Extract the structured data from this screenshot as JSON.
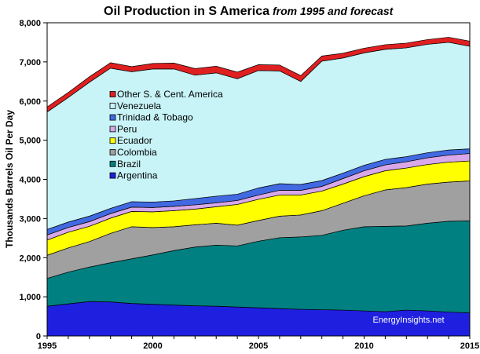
{
  "chart_data": {
    "type": "area",
    "stacked": true,
    "title": "Oil Production in S America",
    "subtitle": "from 1995 and forecast",
    "ylabel": "Thousands Barrels Oil Per Day",
    "xlabel": "",
    "xlim": [
      1995,
      2015
    ],
    "ylim": [
      0,
      8000
    ],
    "x_ticks": [
      1995,
      2000,
      2005,
      2010,
      2015
    ],
    "y_ticks": [
      0,
      1000,
      2000,
      3000,
      4000,
      5000,
      6000,
      7000,
      8000
    ],
    "y_tick_labels": [
      "0",
      "1,000",
      "2,000",
      "3,000",
      "4,000",
      "5,000",
      "6,000",
      "7,000",
      "8,000"
    ],
    "grid": false,
    "legend_position": "center-left",
    "watermark": "EnergyInsights.net",
    "x": [
      1995,
      1996,
      1997,
      1998,
      1999,
      2000,
      2001,
      2002,
      2003,
      2004,
      2005,
      2006,
      2007,
      2008,
      2009,
      2010,
      2011,
      2012,
      2013,
      2014,
      2015
    ],
    "series": [
      {
        "name": "Argentina",
        "color": "#1f1fe0",
        "values": [
          760,
          820,
          880,
          870,
          830,
          810,
          790,
          770,
          760,
          740,
          720,
          700,
          680,
          670,
          660,
          640,
          620,
          660,
          640,
          610,
          590
        ]
      },
      {
        "name": "Brazil",
        "color": "#008080",
        "values": [
          710,
          810,
          880,
          1000,
          1140,
          1260,
          1390,
          1500,
          1560,
          1560,
          1700,
          1810,
          1850,
          1900,
          2040,
          2150,
          2180,
          2150,
          2240,
          2320,
          2350
        ]
      },
      {
        "name": "Colombia",
        "color": "#a0a0a0",
        "values": [
          590,
          620,
          650,
          750,
          820,
          700,
          610,
          570,
          560,
          530,
          530,
          550,
          560,
          630,
          690,
          790,
          930,
          980,
          1000,
          1000,
          1020
        ]
      },
      {
        "name": "Ecuador",
        "color": "#ffff00",
        "values": [
          390,
          400,
          390,
          390,
          390,
          400,
          410,
          400,
          420,
          530,
          540,
          540,
          510,
          500,
          490,
          490,
          490,
          500,
          500,
          510,
          510
        ]
      },
      {
        "name": "Peru",
        "color": "#d8a8e8",
        "values": [
          130,
          120,
          120,
          115,
          110,
          110,
          110,
          110,
          100,
          100,
          110,
          120,
          120,
          120,
          140,
          150,
          150,
          160,
          170,
          180,
          190
        ]
      },
      {
        "name": "Trinidad & Tobago",
        "color": "#4169e1",
        "values": [
          140,
          140,
          140,
          135,
          140,
          140,
          140,
          160,
          170,
          160,
          180,
          170,
          150,
          150,
          140,
          140,
          140,
          130,
          130,
          130,
          120
        ]
      },
      {
        "name": "Venezuela",
        "color": "#c8f4f8",
        "values": [
          3000,
          3180,
          3420,
          3580,
          3320,
          3400,
          3370,
          3150,
          3150,
          2950,
          3000,
          2880,
          2630,
          3050,
          2940,
          2870,
          2810,
          2780,
          2770,
          2750,
          2620
        ]
      },
      {
        "name": "Other S. & Cent. America",
        "color": "#e02020",
        "values": [
          130,
          130,
          140,
          140,
          130,
          140,
          150,
          170,
          170,
          170,
          150,
          150,
          150,
          130,
          120,
          120,
          120,
          120,
          120,
          130,
          130
        ]
      }
    ]
  }
}
